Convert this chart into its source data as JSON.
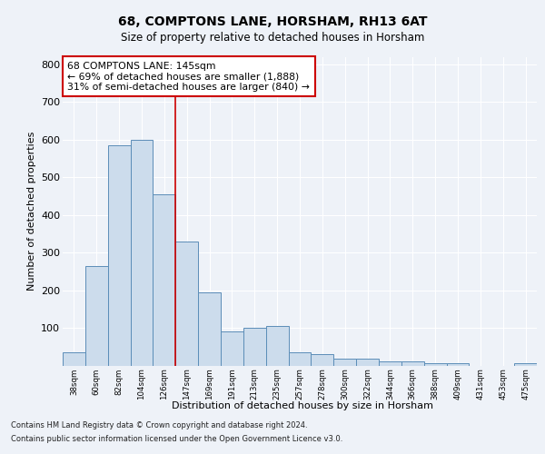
{
  "title": "68, COMPTONS LANE, HORSHAM, RH13 6AT",
  "subtitle": "Size of property relative to detached houses in Horsham",
  "xlabel": "Distribution of detached houses by size in Horsham",
  "ylabel": "Number of detached properties",
  "categories": [
    "38sqm",
    "60sqm",
    "82sqm",
    "104sqm",
    "126sqm",
    "147sqm",
    "169sqm",
    "191sqm",
    "213sqm",
    "235sqm",
    "257sqm",
    "278sqm",
    "300sqm",
    "322sqm",
    "344sqm",
    "366sqm",
    "388sqm",
    "409sqm",
    "431sqm",
    "453sqm",
    "475sqm"
  ],
  "values": [
    35,
    265,
    585,
    600,
    455,
    330,
    195,
    90,
    100,
    105,
    35,
    30,
    17,
    17,
    12,
    10,
    5,
    7,
    0,
    0,
    7
  ],
  "bar_color": "#ccdcec",
  "bar_edge_color": "#5b8db8",
  "highlight_line_color": "#cc0000",
  "annotation_text": "68 COMPTONS LANE: 145sqm\n← 69% of detached houses are smaller (1,888)\n31% of semi-detached houses are larger (840) →",
  "annotation_box_color": "#ffffff",
  "annotation_box_edge": "#cc0000",
  "ylim": [
    0,
    820
  ],
  "yticks": [
    0,
    100,
    200,
    300,
    400,
    500,
    600,
    700,
    800
  ],
  "footer_line1": "Contains HM Land Registry data © Crown copyright and database right 2024.",
  "footer_line2": "Contains public sector information licensed under the Open Government Licence v3.0.",
  "bg_color": "#eef2f8",
  "axes_bg_color": "#eef2f8",
  "grid_color": "#ffffff"
}
